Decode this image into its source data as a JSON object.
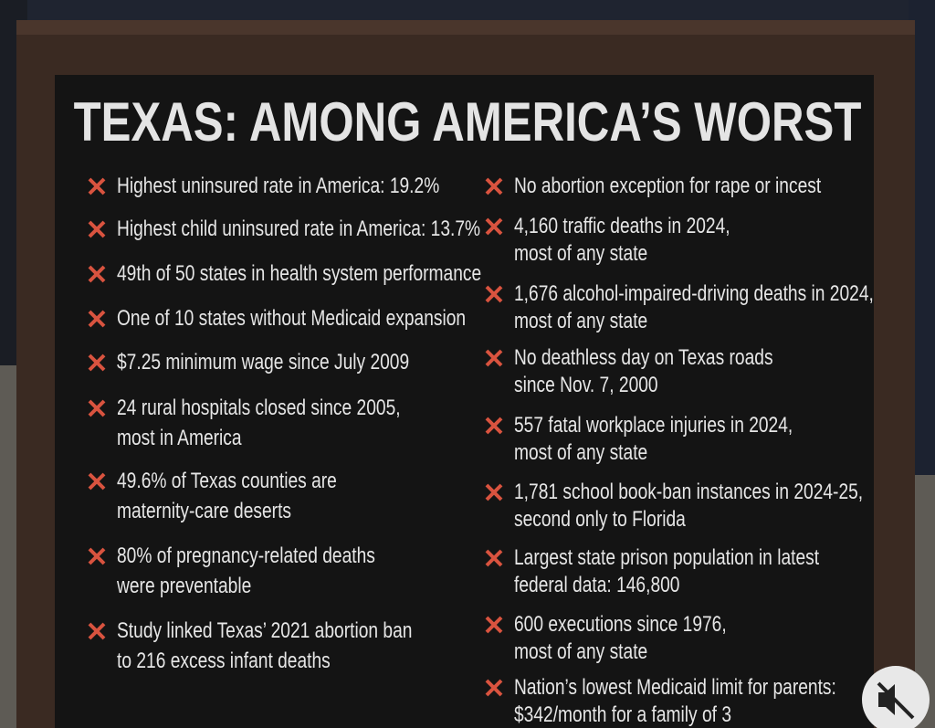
{
  "title": "TEXAS: AMONG AMERICA’S WORST",
  "left_items": [
    [
      "Highest uninsured rate in America: 19.2%"
    ],
    [
      "Highest child uninsured rate in America: 13.7%"
    ],
    [
      "49th of 50 states in health system performance"
    ],
    [
      "One of 10 states without Medicaid expansion"
    ],
    [
      "$7.25 minimum wage since July 2009"
    ],
    [
      "24 rural hospitals closed since 2005,",
      "most in America"
    ],
    [
      "49.6% of Texas counties are",
      "maternity-care deserts"
    ],
    [
      "80% of pregnancy-related deaths",
      "were preventable"
    ],
    [
      "Study linked Texas’ 2021 abortion ban",
      "to 216 excess infant deaths"
    ]
  ],
  "right_items": [
    [
      "No abortion exception for rape or incest"
    ],
    [
      "4,160 traffic deaths in 2024,",
      "most of any state"
    ],
    [
      "1,676 alcohol-impaired-driving deaths in 2024,",
      "most of any state"
    ],
    [
      "No deathless day on Texas roads",
      "since Nov. 7, 2000"
    ],
    [
      "557 fatal workplace injuries in 2024,",
      "most of any state"
    ],
    [
      "1,781 school book-ban instances in 2024-25,",
      "second only to Florida"
    ],
    [
      "Largest state prison population in latest",
      "federal data: 146,800"
    ],
    [
      "600 executions since 1976,",
      "most of any state"
    ],
    [
      "Nation’s lowest Medicaid limit for parents:",
      "$342/month for a family of 3"
    ]
  ]
}
